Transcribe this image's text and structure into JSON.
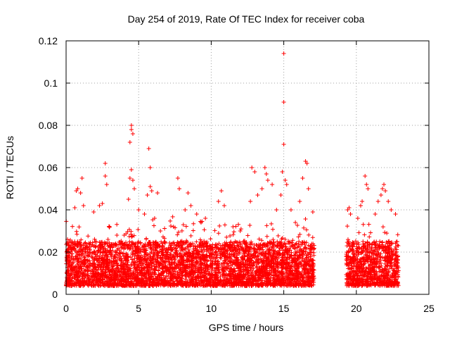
{
  "chart_data": {
    "type": "scatter",
    "title": "Day 254 of 2019, Rate Of TEC Index for receiver coba",
    "xlabel": "GPS time / hours",
    "ylabel": "ROTI / TECUs",
    "xlim": [
      0,
      25
    ],
    "ylim": [
      0,
      0.12
    ],
    "x_ticks": [
      0,
      5,
      10,
      15,
      20,
      25
    ],
    "x_tick_labels": [
      "0",
      "5",
      "10",
      "15",
      "20",
      "25"
    ],
    "y_ticks": [
      0,
      0.02,
      0.04,
      0.06,
      0.08,
      0.1,
      0.12
    ],
    "y_tick_labels": [
      "0",
      "0.02",
      "0.04",
      "0.06",
      "0.08",
      "0.1",
      "0.12"
    ],
    "grid": true,
    "marker": "+",
    "series_color": "#ff0000",
    "data_coverage": [
      {
        "start": 0.0,
        "end": 17.1,
        "typical_min": 0.004,
        "typical_max": 0.025
      },
      {
        "start": 19.3,
        "end": 22.9,
        "typical_min": 0.004,
        "typical_max": 0.025
      }
    ],
    "notable_points": [
      {
        "x": 0.1,
        "y": 0.026
      },
      {
        "x": 0.6,
        "y": 0.041
      },
      {
        "x": 0.7,
        "y": 0.049
      },
      {
        "x": 0.8,
        "y": 0.05
      },
      {
        "x": 1.0,
        "y": 0.048
      },
      {
        "x": 1.1,
        "y": 0.055
      },
      {
        "x": 1.2,
        "y": 0.042
      },
      {
        "x": 1.9,
        "y": 0.039
      },
      {
        "x": 2.3,
        "y": 0.042
      },
      {
        "x": 2.5,
        "y": 0.043
      },
      {
        "x": 2.7,
        "y": 0.062
      },
      {
        "x": 2.7,
        "y": 0.056
      },
      {
        "x": 2.8,
        "y": 0.052
      },
      {
        "x": 3.0,
        "y": 0.032
      },
      {
        "x": 3.5,
        "y": 0.028
      },
      {
        "x": 4.3,
        "y": 0.045
      },
      {
        "x": 4.4,
        "y": 0.055
      },
      {
        "x": 4.4,
        "y": 0.072
      },
      {
        "x": 4.5,
        "y": 0.078
      },
      {
        "x": 4.5,
        "y": 0.08
      },
      {
        "x": 4.6,
        "y": 0.076
      },
      {
        "x": 4.5,
        "y": 0.059
      },
      {
        "x": 4.6,
        "y": 0.054
      },
      {
        "x": 4.7,
        "y": 0.05
      },
      {
        "x": 5.0,
        "y": 0.04
      },
      {
        "x": 5.4,
        "y": 0.038
      },
      {
        "x": 5.6,
        "y": 0.047
      },
      {
        "x": 5.7,
        "y": 0.069
      },
      {
        "x": 5.8,
        "y": 0.06
      },
      {
        "x": 5.8,
        "y": 0.051
      },
      {
        "x": 5.9,
        "y": 0.049
      },
      {
        "x": 6.1,
        "y": 0.036
      },
      {
        "x": 6.3,
        "y": 0.048
      },
      {
        "x": 6.5,
        "y": 0.03
      },
      {
        "x": 7.4,
        "y": 0.032
      },
      {
        "x": 7.7,
        "y": 0.055
      },
      {
        "x": 7.8,
        "y": 0.05
      },
      {
        "x": 8.2,
        "y": 0.04
      },
      {
        "x": 8.4,
        "y": 0.048
      },
      {
        "x": 8.6,
        "y": 0.042
      },
      {
        "x": 9.0,
        "y": 0.038
      },
      {
        "x": 9.3,
        "y": 0.034
      },
      {
        "x": 9.6,
        "y": 0.036
      },
      {
        "x": 10.5,
        "y": 0.044
      },
      {
        "x": 10.7,
        "y": 0.049
      },
      {
        "x": 10.9,
        "y": 0.042
      },
      {
        "x": 11.5,
        "y": 0.032
      },
      {
        "x": 12.0,
        "y": 0.03
      },
      {
        "x": 12.7,
        "y": 0.044
      },
      {
        "x": 12.8,
        "y": 0.06
      },
      {
        "x": 13.0,
        "y": 0.058
      },
      {
        "x": 13.2,
        "y": 0.047
      },
      {
        "x": 13.5,
        "y": 0.05
      },
      {
        "x": 13.7,
        "y": 0.06
      },
      {
        "x": 13.8,
        "y": 0.057
      },
      {
        "x": 13.9,
        "y": 0.054
      },
      {
        "x": 14.2,
        "y": 0.052
      },
      {
        "x": 14.5,
        "y": 0.04
      },
      {
        "x": 14.8,
        "y": 0.047
      },
      {
        "x": 14.9,
        "y": 0.058
      },
      {
        "x": 15.0,
        "y": 0.114
      },
      {
        "x": 15.0,
        "y": 0.091
      },
      {
        "x": 15.0,
        "y": 0.071
      },
      {
        "x": 15.1,
        "y": 0.054
      },
      {
        "x": 15.2,
        "y": 0.052
      },
      {
        "x": 15.5,
        "y": 0.04
      },
      {
        "x": 15.8,
        "y": 0.034
      },
      {
        "x": 16.1,
        "y": 0.044
      },
      {
        "x": 16.3,
        "y": 0.055
      },
      {
        "x": 16.5,
        "y": 0.063
      },
      {
        "x": 16.6,
        "y": 0.062
      },
      {
        "x": 16.7,
        "y": 0.05
      },
      {
        "x": 17.0,
        "y": 0.039
      },
      {
        "x": 19.4,
        "y": 0.04
      },
      {
        "x": 19.5,
        "y": 0.041
      },
      {
        "x": 19.6,
        "y": 0.038
      },
      {
        "x": 20.1,
        "y": 0.036
      },
      {
        "x": 20.3,
        "y": 0.042
      },
      {
        "x": 20.4,
        "y": 0.044
      },
      {
        "x": 20.6,
        "y": 0.056
      },
      {
        "x": 20.7,
        "y": 0.052
      },
      {
        "x": 20.8,
        "y": 0.05
      },
      {
        "x": 21.3,
        "y": 0.038
      },
      {
        "x": 21.5,
        "y": 0.044
      },
      {
        "x": 21.7,
        "y": 0.047
      },
      {
        "x": 21.8,
        "y": 0.05
      },
      {
        "x": 21.9,
        "y": 0.052
      },
      {
        "x": 22.0,
        "y": 0.049
      },
      {
        "x": 22.2,
        "y": 0.044
      },
      {
        "x": 22.4,
        "y": 0.04
      },
      {
        "x": 22.7,
        "y": 0.038
      }
    ]
  }
}
